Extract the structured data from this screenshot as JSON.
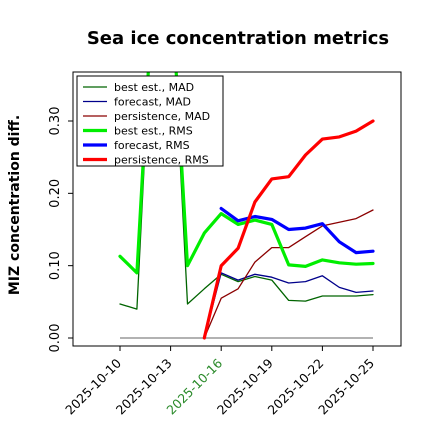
{
  "chart_data": {
    "type": "line",
    "title": "Sea ice concentration metrics",
    "ylabel": "MIZ concentration diff.",
    "xlabel": "",
    "x_ticks": [
      "2025-10-10",
      "2025-10-13",
      "2025-10-16",
      "2025-10-19",
      "2025-10-22",
      "2025-10-25"
    ],
    "x_tick_colors": [
      "#000000",
      "#000000",
      "#2a8a2a",
      "#000000",
      "#000000",
      "#000000"
    ],
    "y_ticks": [
      "0.00",
      "0.10",
      "0.20",
      "0.30"
    ],
    "xlim": [
      9,
      26
    ],
    "ylim": [
      -0.01,
      0.36
    ],
    "grid": false,
    "legend_position": "upper-left",
    "series": [
      {
        "name": "best est., MAD",
        "color": "#006400",
        "width": 1.3,
        "x": [
          10,
          11,
          12,
          13,
          14,
          15,
          16,
          17,
          18,
          19,
          20,
          21,
          22,
          23,
          24,
          25
        ],
        "y": [
          0.047,
          0.04,
          0.5,
          0.5,
          0.047,
          0.068,
          0.088,
          0.078,
          0.085,
          0.08,
          0.052,
          0.051,
          0.058,
          0.058,
          0.058,
          0.06
        ]
      },
      {
        "name": "forecast,  MAD",
        "color": "#00008b",
        "width": 1.3,
        "x": [
          15,
          16,
          17,
          18,
          19,
          20,
          21,
          22,
          23,
          24,
          25
        ],
        "y": [
          0.0,
          0.09,
          0.08,
          0.088,
          0.084,
          0.076,
          0.078,
          0.086,
          0.07,
          0.063,
          0.065
        ]
      },
      {
        "name": "persistence, MAD",
        "color": "#8b0000",
        "width": 1.3,
        "x": [
          15,
          16,
          17,
          18,
          19,
          20,
          21,
          22,
          23,
          24,
          25
        ],
        "y": [
          0.0,
          0.055,
          0.068,
          0.105,
          0.125,
          0.125,
          0.14,
          0.155,
          0.16,
          0.165,
          0.177
        ]
      },
      {
        "name": "best est., RMS",
        "color": "#00ee00",
        "width": 3.2,
        "x": [
          10,
          11,
          12,
          13,
          14,
          15,
          16,
          17,
          18,
          19,
          20,
          21,
          22,
          23,
          24,
          25
        ],
        "y": [
          0.113,
          0.09,
          0.5,
          0.5,
          0.1,
          0.145,
          0.172,
          0.157,
          0.163,
          0.157,
          0.101,
          0.099,
          0.108,
          0.104,
          0.102,
          0.103
        ]
      },
      {
        "name": "forecast,  RMS",
        "color": "#0000ff",
        "width": 3.2,
        "x": [
          16,
          17,
          18,
          19,
          20,
          21,
          22,
          23,
          24,
          25
        ],
        "y": [
          0.179,
          0.162,
          0.168,
          0.164,
          0.15,
          0.152,
          0.158,
          0.133,
          0.118,
          0.12
        ]
      },
      {
        "name": "persistence, RMS",
        "color": "#ff0000",
        "width": 3.2,
        "x": [
          15,
          16,
          17,
          18,
          19,
          20,
          21,
          22,
          23,
          24,
          25
        ],
        "y": [
          0.0,
          0.1,
          0.124,
          0.188,
          0.22,
          0.223,
          0.253,
          0.275,
          0.278,
          0.286,
          0.3
        ]
      }
    ],
    "reference_line": {
      "y": 0.0,
      "from_x": 10,
      "to_x": 25,
      "color": "#999999"
    }
  }
}
